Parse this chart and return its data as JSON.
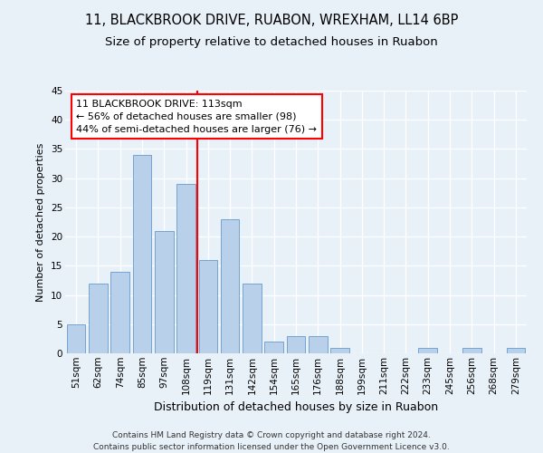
{
  "title1": "11, BLACKBROOK DRIVE, RUABON, WREXHAM, LL14 6BP",
  "title2": "Size of property relative to detached houses in Ruabon",
  "xlabel": "Distribution of detached houses by size in Ruabon",
  "ylabel": "Number of detached properties",
  "categories": [
    "51sqm",
    "62sqm",
    "74sqm",
    "85sqm",
    "97sqm",
    "108sqm",
    "119sqm",
    "131sqm",
    "142sqm",
    "154sqm",
    "165sqm",
    "176sqm",
    "188sqm",
    "199sqm",
    "211sqm",
    "222sqm",
    "233sqm",
    "245sqm",
    "256sqm",
    "268sqm",
    "279sqm"
  ],
  "values": [
    5,
    12,
    14,
    34,
    21,
    29,
    16,
    23,
    12,
    2,
    3,
    3,
    1,
    0,
    0,
    0,
    1,
    0,
    1,
    0,
    1
  ],
  "bar_color": "#b8d0ea",
  "bar_edge_color": "#6699cc",
  "annotation_lines": [
    "11 BLACKBROOK DRIVE: 113sqm",
    "← 56% of detached houses are smaller (98)",
    "44% of semi-detached houses are larger (76) →"
  ],
  "footer_line1": "Contains HM Land Registry data © Crown copyright and database right 2024.",
  "footer_line2": "Contains public sector information licensed under the Open Government Licence v3.0.",
  "ylim": [
    0,
    45
  ],
  "yticks": [
    0,
    5,
    10,
    15,
    20,
    25,
    30,
    35,
    40,
    45
  ],
  "bg_color": "#e8f0f8",
  "grid_color": "#ffffff",
  "title1_fontsize": 10.5,
  "title2_fontsize": 9.5,
  "xlabel_fontsize": 9,
  "ylabel_fontsize": 8,
  "tick_fontsize": 7.5,
  "annotation_fontsize": 8,
  "footer_fontsize": 6.5
}
